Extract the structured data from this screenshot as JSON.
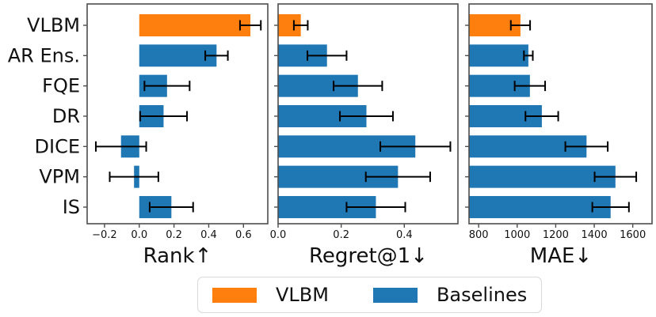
{
  "colors": {
    "vlbm": "#ff7f0e",
    "baselines": "#1f77b4",
    "error_bar": "#000000",
    "spine": "#4d4d4d",
    "text": "#111111",
    "background": "#ffffff"
  },
  "legend": {
    "items": [
      {
        "label": "VLBM",
        "color": "#ff7f0e"
      },
      {
        "label": "Baselines",
        "color": "#1f77b4"
      }
    ]
  },
  "chart_data": [
    {
      "type": "bar",
      "orientation": "horizontal",
      "xlabel": "Rank↑",
      "categories": [
        "VLBM",
        "AR Ens.",
        "FQE",
        "DR",
        "DICE",
        "VPM",
        "IS"
      ],
      "values": [
        0.64,
        0.445,
        0.16,
        0.14,
        -0.105,
        -0.03,
        0.185
      ],
      "errors": [
        0.06,
        0.065,
        0.13,
        0.135,
        0.145,
        0.14,
        0.125
      ],
      "highlight_category": "VLBM",
      "xlim": [
        -0.3,
        0.74
      ],
      "xticks": [
        -0.2,
        0.0,
        0.2,
        0.4,
        0.6
      ],
      "xtick_labels": [
        "−0.2",
        "0.0",
        "0.2",
        "0.4",
        "0.6"
      ],
      "show_category_labels": true,
      "grid": false
    },
    {
      "type": "bar",
      "orientation": "horizontal",
      "xlabel": "Regret@1↓",
      "categories": [
        "VLBM",
        "AR Ens.",
        "FQE",
        "DR",
        "DICE",
        "VPM",
        "IS"
      ],
      "values": [
        0.072,
        0.155,
        0.253,
        0.28,
        0.435,
        0.38,
        0.31
      ],
      "errors": [
        0.022,
        0.062,
        0.077,
        0.084,
        0.111,
        0.102,
        0.093
      ],
      "highlight_category": "VLBM",
      "xlim": [
        0.0,
        0.57
      ],
      "xticks": [
        0.0,
        0.2,
        0.4
      ],
      "xtick_labels": [
        "0.0",
        "0.2",
        "0.4"
      ],
      "show_category_labels": false,
      "grid": false
    },
    {
      "type": "bar",
      "orientation": "horizontal",
      "xlabel": "MAE↓",
      "categories": [
        "VLBM",
        "AR Ens.",
        "FQE",
        "DR",
        "DICE",
        "VPM",
        "IS"
      ],
      "values": [
        1017,
        1058,
        1066,
        1128,
        1360,
        1510,
        1485
      ],
      "errors": [
        50,
        23,
        79,
        85,
        110,
        108,
        95
      ],
      "highlight_category": "VLBM",
      "xlim": [
        750,
        1700
      ],
      "xticks": [
        800,
        1000,
        1200,
        1400,
        1600
      ],
      "xtick_labels": [
        "800",
        "1000",
        "1200",
        "1400",
        "1600"
      ],
      "show_category_labels": false,
      "grid": false
    }
  ]
}
